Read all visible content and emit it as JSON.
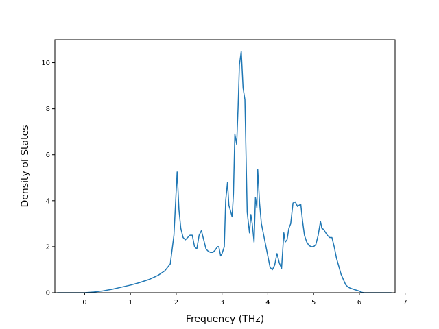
{
  "chart_data": {
    "type": "line",
    "title": "",
    "xlabel": "Frequency (THz)",
    "ylabel": "Density of States",
    "xlim": [
      -0.65,
      6.78
    ],
    "ylim": [
      0,
      11
    ],
    "xticks": [
      0,
      1,
      2,
      3,
      4,
      5,
      6,
      7
    ],
    "yticks": [
      0,
      2,
      4,
      6,
      8,
      10
    ],
    "grid": false,
    "line_color": "#1f77b4",
    "series": [
      {
        "x": [
          -0.6,
          -0.3,
          0.0,
          0.2,
          0.4,
          0.6,
          0.8,
          1.0,
          1.2,
          1.4,
          1.6,
          1.75,
          1.87,
          1.95,
          2.02,
          2.06,
          2.1,
          2.15,
          2.2,
          2.25,
          2.3,
          2.35,
          2.4,
          2.45,
          2.5,
          2.55,
          2.6,
          2.65,
          2.7,
          2.75,
          2.8,
          2.85,
          2.9,
          2.93,
          2.97,
          3.0,
          3.05,
          3.08,
          3.12,
          3.15,
          3.18,
          3.22,
          3.25,
          3.28,
          3.32,
          3.35,
          3.38,
          3.42,
          3.46,
          3.5,
          3.55,
          3.6,
          3.63,
          3.66,
          3.7,
          3.73,
          3.76,
          3.78,
          3.82,
          3.86,
          3.9,
          3.95,
          4.0,
          4.05,
          4.1,
          4.15,
          4.2,
          4.25,
          4.3,
          4.35,
          4.38,
          4.42,
          4.46,
          4.5,
          4.55,
          4.6,
          4.65,
          4.68,
          4.72,
          4.76,
          4.8,
          4.85,
          4.9,
          4.95,
          5.0,
          5.05,
          5.1,
          5.15,
          5.18,
          5.22,
          5.25,
          5.3,
          5.35,
          5.4,
          5.45,
          5.5,
          5.6,
          5.7,
          5.75,
          5.8,
          5.9,
          6.0,
          6.05,
          6.1,
          6.4,
          6.7
        ],
        "y": [
          0,
          0,
          0,
          0.03,
          0.08,
          0.15,
          0.24,
          0.33,
          0.44,
          0.57,
          0.75,
          0.95,
          1.25,
          2.5,
          5.25,
          3.6,
          2.8,
          2.4,
          2.3,
          2.4,
          2.5,
          2.5,
          2.0,
          1.9,
          2.5,
          2.7,
          2.3,
          1.9,
          1.8,
          1.75,
          1.75,
          1.85,
          2.0,
          2.0,
          1.6,
          1.7,
          2.0,
          4.0,
          4.8,
          3.8,
          3.6,
          3.3,
          4.3,
          6.9,
          6.45,
          8.0,
          9.9,
          10.5,
          8.9,
          8.4,
          3.5,
          2.6,
          3.4,
          3.0,
          2.2,
          4.15,
          3.7,
          5.35,
          3.9,
          3.0,
          2.6,
          2.1,
          1.6,
          1.1,
          1.0,
          1.2,
          1.7,
          1.3,
          1.05,
          2.6,
          2.2,
          2.3,
          2.8,
          3.0,
          3.9,
          3.95,
          3.75,
          3.8,
          3.85,
          3.1,
          2.5,
          2.2,
          2.05,
          2.0,
          2.0,
          2.1,
          2.5,
          3.1,
          2.8,
          2.75,
          2.65,
          2.5,
          2.4,
          2.4,
          2.0,
          1.5,
          0.8,
          0.35,
          0.25,
          0.2,
          0.13,
          0.07,
          0.02,
          0,
          0,
          0
        ]
      }
    ]
  }
}
